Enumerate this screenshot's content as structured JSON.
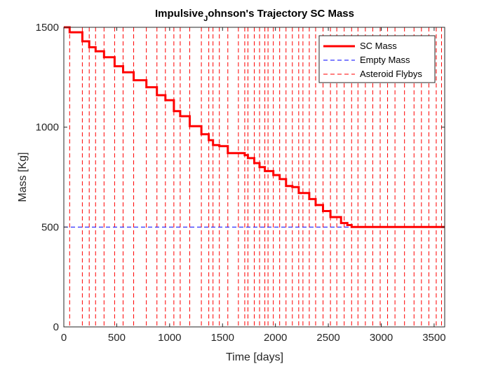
{
  "chart_data": {
    "type": "line",
    "title_main": "Impulsive",
    "title_sub": "J",
    "title_rest": "ohnson's Trajectory SC Mass",
    "xlabel": "Time [days]",
    "ylabel": "Mass [Kg]",
    "xlim": [
      0,
      3600
    ],
    "ylim": [
      0,
      1500
    ],
    "xticks": [
      0,
      500,
      1000,
      1500,
      2000,
      2500,
      3000,
      3500
    ],
    "yticks": [
      0,
      500,
      1000,
      1500
    ],
    "xtick_labels": [
      "0",
      "500",
      "1000",
      "1500",
      "2000",
      "2500",
      "3000",
      "3500"
    ],
    "ytick_labels": [
      "0",
      "500",
      "1000",
      "1500"
    ],
    "grid": false,
    "legend_position": "top-right",
    "legend": {
      "sc_mass": "SC Mass",
      "empty_mass": "Empty Mass",
      "flybys": "Asteroid Flybys"
    },
    "colors": {
      "sc_mass": "#ff0000",
      "empty_mass": "#0000ff",
      "flybys": "#ff0000"
    },
    "empty_mass_value": 500,
    "flyby_times": [
      55,
      175,
      240,
      300,
      380,
      480,
      560,
      660,
      780,
      880,
      960,
      1040,
      1100,
      1190,
      1300,
      1370,
      1410,
      1470,
      1550,
      1650,
      1710,
      1740,
      1800,
      1850,
      1900,
      1930,
      1980,
      2040,
      2100,
      2160,
      2220,
      2260,
      2320,
      2380,
      2450,
      2520,
      2580,
      2650,
      2720,
      2780,
      2850,
      2920,
      2990,
      3060,
      3130,
      3220,
      3310,
      3380,
      3450,
      3520,
      3570
    ],
    "mass_steps": [
      {
        "t": 0,
        "m": 1500
      },
      {
        "t": 55,
        "m": 1475
      },
      {
        "t": 175,
        "m": 1430
      },
      {
        "t": 240,
        "m": 1400
      },
      {
        "t": 300,
        "m": 1380
      },
      {
        "t": 380,
        "m": 1350
      },
      {
        "t": 480,
        "m": 1305
      },
      {
        "t": 560,
        "m": 1275
      },
      {
        "t": 660,
        "m": 1235
      },
      {
        "t": 780,
        "m": 1200
      },
      {
        "t": 880,
        "m": 1160
      },
      {
        "t": 960,
        "m": 1135
      },
      {
        "t": 1040,
        "m": 1080
      },
      {
        "t": 1100,
        "m": 1055
      },
      {
        "t": 1190,
        "m": 1005
      },
      {
        "t": 1300,
        "m": 965
      },
      {
        "t": 1370,
        "m": 935
      },
      {
        "t": 1410,
        "m": 910
      },
      {
        "t": 1470,
        "m": 905
      },
      {
        "t": 1550,
        "m": 870
      },
      {
        "t": 1710,
        "m": 860
      },
      {
        "t": 1740,
        "m": 845
      },
      {
        "t": 1800,
        "m": 820
      },
      {
        "t": 1850,
        "m": 800
      },
      {
        "t": 1900,
        "m": 780
      },
      {
        "t": 1980,
        "m": 760
      },
      {
        "t": 2040,
        "m": 740
      },
      {
        "t": 2100,
        "m": 705
      },
      {
        "t": 2160,
        "m": 700
      },
      {
        "t": 2220,
        "m": 670
      },
      {
        "t": 2320,
        "m": 640
      },
      {
        "t": 2380,
        "m": 610
      },
      {
        "t": 2450,
        "m": 580
      },
      {
        "t": 2520,
        "m": 550
      },
      {
        "t": 2620,
        "m": 520
      },
      {
        "t": 2680,
        "m": 510
      },
      {
        "t": 2720,
        "m": 500
      },
      {
        "t": 3600,
        "m": 500
      }
    ]
  }
}
